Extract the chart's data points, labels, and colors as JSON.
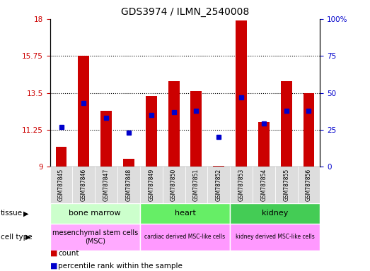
{
  "title": "GDS3974 / ILMN_2540008",
  "samples": [
    "GSM787845",
    "GSM787846",
    "GSM787847",
    "GSM787848",
    "GSM787849",
    "GSM787850",
    "GSM787851",
    "GSM787852",
    "GSM787853",
    "GSM787854",
    "GSM787855",
    "GSM787856"
  ],
  "count_values": [
    10.2,
    15.75,
    12.4,
    9.5,
    13.3,
    14.2,
    13.6,
    9.05,
    17.9,
    11.7,
    14.2,
    13.5
  ],
  "percentile_values": [
    27,
    43,
    33,
    23,
    35,
    37,
    38,
    20,
    47,
    29,
    38,
    38
  ],
  "ylim_left": [
    9,
    18
  ],
  "ylim_right": [
    0,
    100
  ],
  "yticks_left": [
    9,
    11.25,
    13.5,
    15.75,
    18
  ],
  "yticks_right": [
    0,
    25,
    50,
    75,
    100
  ],
  "bar_color": "#cc0000",
  "dot_color": "#0000cc",
  "gridlines": [
    11.25,
    13.5,
    15.75
  ],
  "tissue_groups": [
    {
      "label": "bone marrow",
      "start": 0,
      "end": 4,
      "color": "#ccffcc"
    },
    {
      "label": "heart",
      "start": 4,
      "end": 8,
      "color": "#66ee66"
    },
    {
      "label": "kidney",
      "start": 8,
      "end": 12,
      "color": "#44cc55"
    }
  ],
  "celltype_groups": [
    {
      "label": "mesenchymal stem cells\n(MSC)",
      "start": 0,
      "end": 4,
      "color": "#ffaaff"
    },
    {
      "label": "cardiac derived MSC-like cells",
      "start": 4,
      "end": 8,
      "color": "#ff99ff"
    },
    {
      "label": "kidney derived MSC-like cells",
      "start": 8,
      "end": 12,
      "color": "#ff99ff"
    }
  ],
  "legend_count_color": "#cc0000",
  "legend_pct_color": "#0000cc",
  "xlabel_tissue": "tissue",
  "xlabel_celltype": "cell type",
  "legend_count_label": "count",
  "legend_pct_label": "percentile rank within the sample",
  "sample_bg_color": "#dddddd"
}
